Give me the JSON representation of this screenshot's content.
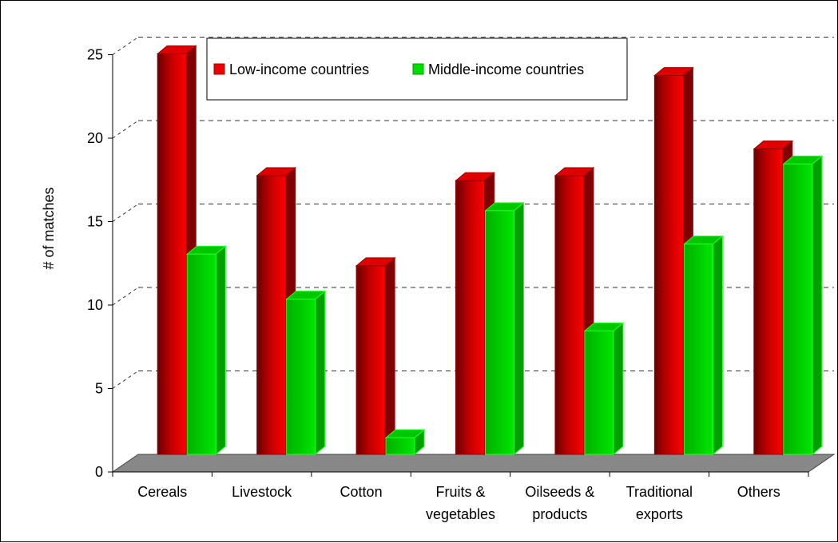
{
  "chart_data": {
    "type": "bar",
    "title": "",
    "xlabel": "",
    "ylabel": "# of matches",
    "ylim": [
      0,
      25
    ],
    "yticks": [
      "0",
      "5",
      "10",
      "15",
      "20",
      "25"
    ],
    "grid": true,
    "style": "3d",
    "legend_position": "top",
    "categories": [
      [
        "Cereals"
      ],
      [
        "Livestock"
      ],
      [
        "Cotton"
      ],
      [
        "Fruits &",
        "vegetables"
      ],
      [
        "Oilseeds &",
        "products"
      ],
      [
        "Traditional",
        "exports"
      ],
      [
        "Others"
      ]
    ],
    "series": [
      {
        "name": "Low-income countries",
        "color": "#ff0000",
        "values": [
          24,
          16.7,
          11.3,
          16.4,
          16.7,
          22.7,
          18.3
        ]
      },
      {
        "name": "Middle-income countries",
        "color": "#00dd00",
        "values": [
          12,
          9.3,
          1,
          14.6,
          7.4,
          12.6,
          17.4
        ]
      }
    ]
  }
}
